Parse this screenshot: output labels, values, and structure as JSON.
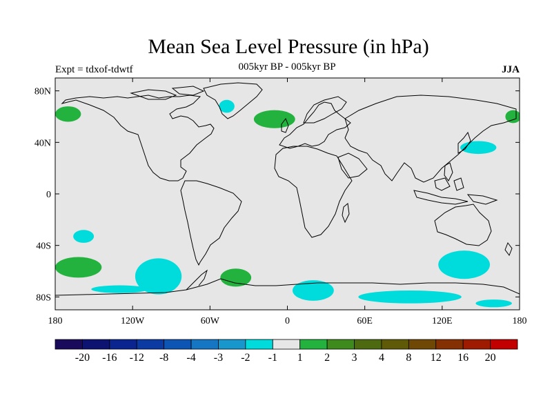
{
  "header": {
    "title": "Mean Sea Level Pressure (in hPa)",
    "subtitle": "005kyr BP - 005kyr BP",
    "left_label": "Expt = tdxof-tdwtf",
    "right_label": "JJA"
  },
  "axes": {
    "x_ticks": [
      {
        "value": -180,
        "label": "180"
      },
      {
        "value": -120,
        "label": "120W"
      },
      {
        "value": -60,
        "label": "60W"
      },
      {
        "value": 0,
        "label": "0"
      },
      {
        "value": 60,
        "label": "60E"
      },
      {
        "value": 120,
        "label": "120E"
      },
      {
        "value": 180,
        "label": "180"
      }
    ],
    "y_ticks": [
      {
        "value": 80,
        "label": "80N"
      },
      {
        "value": 40,
        "label": "40N"
      },
      {
        "value": 0,
        "label": "0"
      },
      {
        "value": -40,
        "label": "40S"
      },
      {
        "value": -80,
        "label": "80S"
      }
    ],
    "xlim": [
      -180,
      180
    ],
    "ylim": [
      -90,
      90
    ]
  },
  "colorbar": {
    "colors": [
      "#1a0a5c",
      "#0d1370",
      "#0a2490",
      "#0c3aa3",
      "#0c55b5",
      "#1576c4",
      "#1797cc",
      "#00dcdc",
      "#e6e6e6",
      "#23b23e",
      "#3f8a1c",
      "#4e6a10",
      "#5e5a08",
      "#6e4804",
      "#853002",
      "#9e1a00",
      "#c30000"
    ],
    "labels": [
      "-20",
      "-16",
      "-12",
      "-8",
      "-4",
      "-3",
      "-2",
      "-1",
      "1",
      "2",
      "3",
      "4",
      "8",
      "12",
      "16",
      "20"
    ]
  },
  "colors": {
    "background": "#e6e6e6",
    "negative_1": "#00dcdc",
    "positive_1": "#23b23e",
    "coast": "#000000"
  },
  "anomaly_regions": [
    {
      "name": "greenland-cyan",
      "level": -1,
      "lon": -47,
      "lat": 68,
      "rlon": 6,
      "rlat": 5
    },
    {
      "name": "arctic-canada-green",
      "level": 1,
      "lon": -170,
      "lat": 62,
      "rlon": 10,
      "rlat": 6
    },
    {
      "name": "iceland-green",
      "level": 1,
      "lon": -10,
      "lat": 58,
      "rlon": 16,
      "rlat": 7
    },
    {
      "name": "east-siberia-green",
      "level": 1,
      "lon": 175,
      "lat": 60,
      "rlon": 6,
      "rlat": 5
    },
    {
      "name": "japan-cyan",
      "level": -1,
      "lon": 148,
      "lat": 36,
      "rlon": 14,
      "rlat": 5
    },
    {
      "name": "s-pacific-cyan-small",
      "level": -1,
      "lon": -158,
      "lat": -33,
      "rlon": 8,
      "rlat": 5
    },
    {
      "name": "s-pacific-green",
      "level": 1,
      "lon": -162,
      "lat": -57,
      "rlon": 18,
      "rlat": 8
    },
    {
      "name": "s-pacific-cyan-large",
      "level": -1,
      "lon": -100,
      "lat": -64,
      "rlon": 18,
      "rlat": 14
    },
    {
      "name": "s-atlantic-green",
      "level": 1,
      "lon": -40,
      "lat": -65,
      "rlon": 12,
      "rlat": 7
    },
    {
      "name": "s-indian-cyan",
      "level": -1,
      "lon": 137,
      "lat": -55,
      "rlon": 20,
      "rlat": 11
    },
    {
      "name": "antarctic-cyan-1",
      "level": -1,
      "lon": 20,
      "lat": -75,
      "rlon": 16,
      "rlat": 8
    },
    {
      "name": "antarctic-cyan-2",
      "level": -1,
      "lon": 95,
      "lat": -80,
      "rlon": 40,
      "rlat": 5
    },
    {
      "name": "antarctic-cyan-3",
      "level": -1,
      "lon": -130,
      "lat": -74,
      "rlon": 22,
      "rlat": 3
    },
    {
      "name": "antarctic-cyan-4",
      "level": -1,
      "lon": 160,
      "lat": -85,
      "rlon": 14,
      "rlat": 3
    }
  ]
}
